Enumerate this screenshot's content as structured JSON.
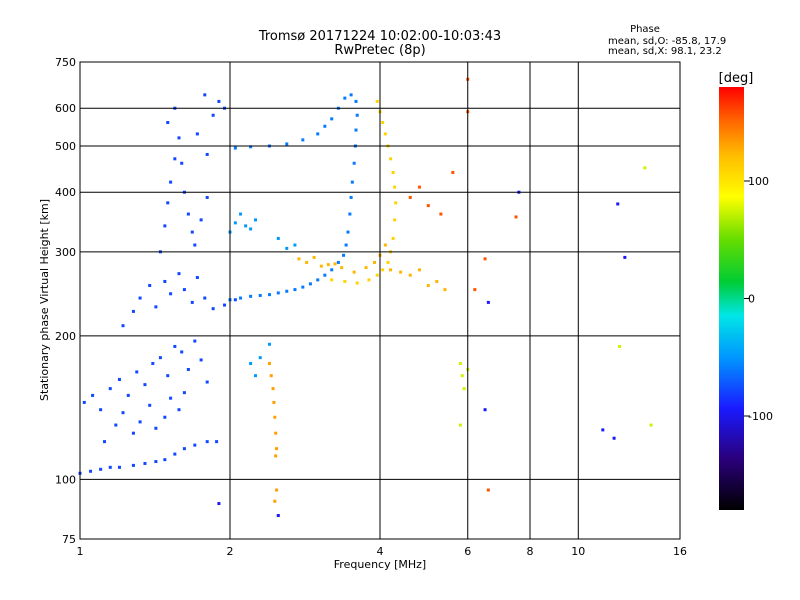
{
  "chart_data": {
    "type": "scatter",
    "title": "Tromsø 20171224 10:02:00-10:03:43",
    "subtitle": "RwPretec (8p)",
    "xlabel": "Frequency [MHz]",
    "ylabel": "Stationary phase Virtual Height [km]",
    "x_scale": "log",
    "y_scale": "log",
    "xlim": [
      1,
      16
    ],
    "ylim": [
      75,
      750
    ],
    "grid": true,
    "x_ticks": [
      {
        "value": 1,
        "label": "1"
      },
      {
        "value": 2,
        "label": "2"
      },
      {
        "value": 4,
        "label": "4"
      },
      {
        "value": 6,
        "label": "6"
      },
      {
        "value": 8,
        "label": "8"
      },
      {
        "value": 10,
        "label": "10"
      },
      {
        "value": 16,
        "label": "16"
      }
    ],
    "y_ticks": [
      {
        "value": 75,
        "label": "75"
      },
      {
        "value": 100,
        "label": "100"
      },
      {
        "value": 200,
        "label": "200"
      },
      {
        "value": 300,
        "label": "300"
      },
      {
        "value": 400,
        "label": "400"
      },
      {
        "value": 500,
        "label": "500"
      },
      {
        "value": 600,
        "label": "600"
      },
      {
        "value": 750,
        "label": "750"
      }
    ],
    "phase_stats": {
      "heading": "Phase",
      "o_line": "mean, sd,O: -85.8, 17.9",
      "x_line": "mean, sd,X: 98.1, 23.2"
    },
    "colorbar": {
      "label": "[deg]",
      "range": [
        -180,
        180
      ],
      "ticks": [
        {
          "value": 100,
          "label": "100"
        },
        {
          "value": 0,
          "label": "0"
        },
        {
          "value": -100,
          "label": "-100"
        }
      ],
      "colormap": [
        "#000000",
        "#2a007a",
        "#1a1aff",
        "#0096ff",
        "#00e6e6",
        "#00cc33",
        "#66dd00",
        "#ffff00",
        "#ffbb00",
        "#ff6600",
        "#ff0000"
      ]
    },
    "series": [
      {
        "phase_deg": -95,
        "points": [
          [
            1.0,
            103
          ],
          [
            1.05,
            104
          ],
          [
            1.1,
            105
          ],
          [
            1.15,
            106
          ],
          [
            1.2,
            106
          ],
          [
            1.28,
            107
          ],
          [
            1.35,
            108
          ],
          [
            1.42,
            109
          ],
          [
            1.48,
            110
          ],
          [
            1.55,
            113
          ],
          [
            1.62,
            116
          ],
          [
            1.7,
            118
          ],
          [
            1.8,
            120
          ],
          [
            1.88,
            120
          ],
          [
            1.02,
            145
          ],
          [
            1.06,
            150
          ],
          [
            1.1,
            140
          ],
          [
            1.15,
            155
          ],
          [
            1.2,
            162
          ],
          [
            1.25,
            150
          ],
          [
            1.3,
            168
          ],
          [
            1.35,
            158
          ],
          [
            1.4,
            175
          ],
          [
            1.45,
            180
          ],
          [
            1.5,
            165
          ],
          [
            1.55,
            190
          ],
          [
            1.6,
            185
          ],
          [
            1.65,
            170
          ],
          [
            1.7,
            195
          ],
          [
            1.75,
            178
          ],
          [
            1.8,
            160
          ],
          [
            1.12,
            120
          ],
          [
            1.18,
            130
          ],
          [
            1.22,
            138
          ],
          [
            1.28,
            125
          ],
          [
            1.32,
            132
          ],
          [
            1.38,
            143
          ],
          [
            1.42,
            128
          ],
          [
            1.48,
            135
          ],
          [
            1.52,
            148
          ],
          [
            1.58,
            140
          ],
          [
            1.62,
            152
          ],
          [
            1.22,
            210
          ],
          [
            1.28,
            225
          ],
          [
            1.32,
            240
          ],
          [
            1.38,
            255
          ],
          [
            1.42,
            230
          ],
          [
            1.48,
            260
          ],
          [
            1.52,
            245
          ],
          [
            1.58,
            270
          ],
          [
            1.62,
            250
          ],
          [
            1.68,
            235
          ],
          [
            1.72,
            265
          ],
          [
            1.78,
            240
          ],
          [
            1.85,
            228
          ],
          [
            1.95,
            232
          ],
          [
            2.05,
            238
          ],
          [
            1.45,
            300
          ],
          [
            1.48,
            340
          ],
          [
            1.5,
            380
          ],
          [
            1.52,
            420
          ],
          [
            1.55,
            470
          ],
          [
            1.58,
            520
          ],
          [
            1.5,
            560
          ],
          [
            1.6,
            460
          ],
          [
            1.62,
            400
          ],
          [
            1.65,
            360
          ],
          [
            1.68,
            330
          ],
          [
            1.7,
            310
          ],
          [
            1.75,
            350
          ],
          [
            1.8,
            390
          ],
          [
            1.72,
            530
          ],
          [
            1.8,
            480
          ],
          [
            1.85,
            580
          ],
          [
            1.9,
            620
          ],
          [
            1.95,
            600
          ],
          [
            1.78,
            640
          ],
          [
            1.55,
            600
          ]
        ]
      },
      {
        "phase_deg": -80,
        "points": [
          [
            2.0,
            238
          ],
          [
            2.1,
            240
          ],
          [
            2.2,
            242
          ],
          [
            2.3,
            243
          ],
          [
            2.4,
            244
          ],
          [
            2.5,
            246
          ],
          [
            2.6,
            248
          ],
          [
            2.7,
            250
          ],
          [
            2.8,
            253
          ],
          [
            2.9,
            257
          ],
          [
            3.0,
            262
          ],
          [
            3.1,
            268
          ],
          [
            3.2,
            275
          ],
          [
            3.3,
            285
          ],
          [
            3.38,
            295
          ],
          [
            3.42,
            310
          ],
          [
            3.45,
            330
          ],
          [
            3.48,
            360
          ],
          [
            3.5,
            390
          ],
          [
            3.52,
            420
          ],
          [
            3.55,
            460
          ],
          [
            3.57,
            500
          ],
          [
            3.58,
            540
          ],
          [
            3.6,
            580
          ],
          [
            3.58,
            620
          ],
          [
            3.5,
            640
          ],
          [
            3.4,
            630
          ],
          [
            3.3,
            600
          ],
          [
            3.2,
            570
          ],
          [
            3.1,
            550
          ],
          [
            3.0,
            530
          ],
          [
            2.8,
            515
          ],
          [
            2.6,
            505
          ],
          [
            2.4,
            500
          ],
          [
            2.2,
            498
          ],
          [
            2.05,
            495
          ]
        ]
      },
      {
        "phase_deg": -70,
        "points": [
          [
            2.0,
            330
          ],
          [
            2.05,
            345
          ],
          [
            2.1,
            360
          ],
          [
            2.15,
            340
          ],
          [
            2.2,
            335
          ],
          [
            2.25,
            350
          ],
          [
            2.5,
            320
          ],
          [
            2.6,
            305
          ],
          [
            2.7,
            310
          ],
          [
            2.2,
            175
          ],
          [
            2.25,
            165
          ],
          [
            2.3,
            180
          ],
          [
            2.4,
            192
          ]
        ]
      },
      {
        "phase_deg": -110,
        "points": [
          [
            1.9,
            89
          ],
          [
            2.5,
            84
          ],
          [
            6.5,
            140
          ],
          [
            6.6,
            235
          ],
          [
            7.6,
            400
          ],
          [
            11.2,
            127
          ],
          [
            11.8,
            122
          ],
          [
            12.0,
            378
          ],
          [
            12.4,
            292
          ]
        ]
      },
      {
        "phase_deg": 95,
        "points": [
          [
            3.2,
            262
          ],
          [
            3.4,
            260
          ],
          [
            3.6,
            258
          ],
          [
            3.8,
            262
          ],
          [
            3.95,
            268
          ],
          [
            4.05,
            275
          ],
          [
            4.15,
            285
          ],
          [
            4.2,
            300
          ],
          [
            4.25,
            320
          ],
          [
            4.28,
            350
          ],
          [
            4.3,
            380
          ],
          [
            4.28,
            410
          ],
          [
            4.25,
            440
          ],
          [
            4.2,
            470
          ],
          [
            4.15,
            500
          ],
          [
            4.1,
            530
          ],
          [
            4.05,
            560
          ],
          [
            4.0,
            590
          ],
          [
            3.95,
            620
          ]
        ]
      },
      {
        "phase_deg": 110,
        "points": [
          [
            2.75,
            290
          ],
          [
            2.85,
            285
          ],
          [
            2.95,
            292
          ],
          [
            3.05,
            280
          ],
          [
            3.15,
            282
          ],
          [
            3.25,
            283
          ],
          [
            3.35,
            278
          ],
          [
            3.55,
            272
          ],
          [
            3.75,
            278
          ],
          [
            3.9,
            285
          ],
          [
            4.0,
            295
          ],
          [
            4.1,
            310
          ],
          [
            4.2,
            275
          ],
          [
            4.4,
            272
          ],
          [
            4.6,
            268
          ],
          [
            4.8,
            275
          ],
          [
            5.0,
            255
          ],
          [
            5.2,
            260
          ],
          [
            5.4,
            250
          ]
        ]
      },
      {
        "phase_deg": 120,
        "points": [
          [
            2.4,
            175
          ],
          [
            2.42,
            165
          ],
          [
            2.44,
            155
          ],
          [
            2.45,
            145
          ],
          [
            2.46,
            135
          ],
          [
            2.47,
            125
          ],
          [
            2.48,
            116
          ],
          [
            2.47,
            112
          ],
          [
            2.46,
            90
          ],
          [
            2.48,
            95
          ]
        ]
      },
      {
        "phase_deg": 150,
        "points": [
          [
            4.6,
            390
          ],
          [
            4.8,
            410
          ],
          [
            5.0,
            375
          ],
          [
            5.3,
            360
          ],
          [
            5.6,
            440
          ],
          [
            6.0,
            590
          ],
          [
            6.2,
            250
          ],
          [
            6.5,
            290
          ],
          [
            6.6,
            95
          ],
          [
            7.5,
            355
          ],
          [
            6.0,
            690
          ]
        ]
      },
      {
        "phase_deg": 60,
        "points": [
          [
            5.8,
            175
          ],
          [
            5.85,
            165
          ],
          [
            5.9,
            155
          ],
          [
            6.0,
            170
          ],
          [
            5.8,
            130
          ],
          [
            12.1,
            190
          ],
          [
            13.6,
            450
          ],
          [
            14.0,
            130
          ]
        ]
      }
    ]
  }
}
